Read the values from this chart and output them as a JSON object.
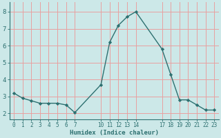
{
  "x": [
    0,
    1,
    2,
    3,
    4,
    5,
    6,
    7,
    10,
    11,
    12,
    13,
    14,
    17,
    18,
    19,
    20,
    21,
    22,
    23
  ],
  "y": [
    3.2,
    2.9,
    2.75,
    2.6,
    2.6,
    2.6,
    2.5,
    2.05,
    3.7,
    6.2,
    7.2,
    7.7,
    8.0,
    5.8,
    4.3,
    2.8,
    2.8,
    2.5,
    2.2,
    2.2
  ],
  "xticks": [
    0,
    1,
    2,
    3,
    4,
    5,
    6,
    7,
    10,
    11,
    12,
    13,
    14,
    17,
    18,
    19,
    20,
    21,
    22,
    23
  ],
  "xticklabels": [
    "0",
    "1",
    "2",
    "3",
    "4",
    "5",
    "6",
    "7",
    "10",
    "11",
    "12",
    "13",
    "14",
    "17",
    "18",
    "19",
    "20",
    "21",
    "22",
    "23"
  ],
  "yticks": [
    2,
    3,
    4,
    5,
    6,
    7,
    8
  ],
  "yticklabels": [
    "2",
    "3",
    "4",
    "5",
    "6",
    "7",
    "8"
  ],
  "ylim": [
    1.65,
    8.55
  ],
  "xlim": [
    -0.5,
    23.5
  ],
  "xlabel": "Humidex (Indice chaleur)",
  "line_color": "#2d7070",
  "marker": "D",
  "marker_size": 2.2,
  "bg_color": "#cce8e8",
  "grid_color": "#e8a0a0",
  "tick_color": "#2d7070",
  "label_color": "#2d7070"
}
